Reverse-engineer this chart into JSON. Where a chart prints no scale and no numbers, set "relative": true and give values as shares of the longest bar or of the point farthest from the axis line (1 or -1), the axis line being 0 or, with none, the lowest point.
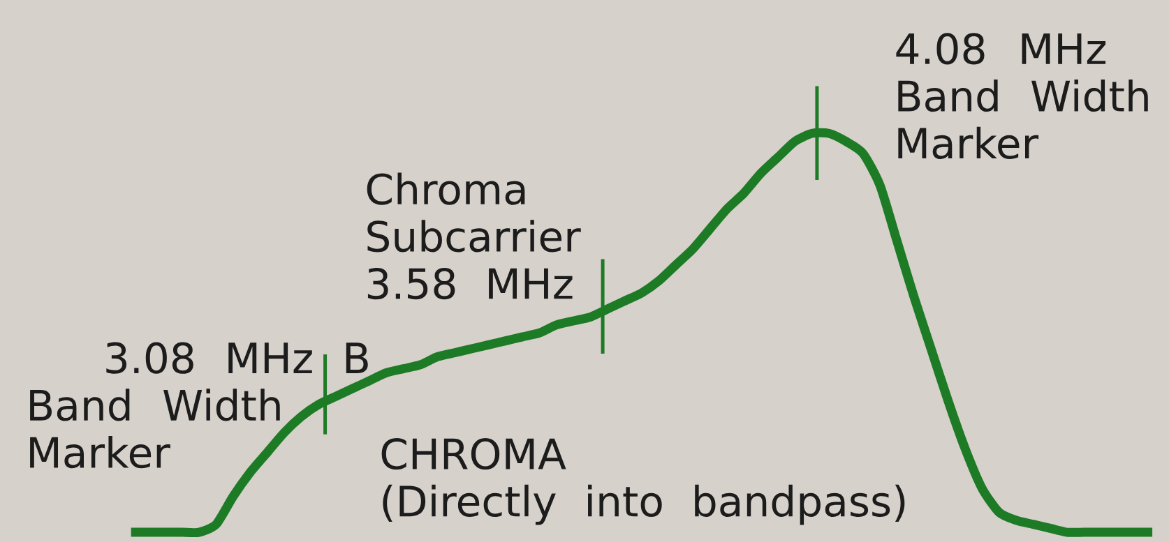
{
  "chart_data": {
    "type": "line",
    "relative": true,
    "categories": [
      null,
      null,
      null,
      null,
      null,
      null,
      null,
      null,
      null,
      null,
      null,
      null,
      null,
      null,
      null,
      null,
      null,
      null,
      null,
      null,
      null,
      null,
      null,
      null,
      null,
      null,
      null,
      null,
      null,
      null,
      null,
      null,
      null,
      null,
      null,
      null,
      null,
      null,
      null,
      null,
      null,
      null,
      null,
      null,
      null,
      null,
      null,
      null,
      null,
      null,
      null,
      null,
      null,
      null,
      null,
      null,
      null,
      null,
      null,
      null,
      null
    ],
    "series": [
      {
        "color": "#1e7b25",
        "values": [
          0,
          0,
          0,
          0,
          0,
          0.02,
          0.09,
          0.15,
          0.2,
          0.25,
          0.29,
          0.32,
          0.34,
          0.36,
          0.38,
          0.4,
          0.41,
          0.42,
          0.44,
          0.45,
          0.46,
          0.47,
          0.48,
          0.49,
          0.5,
          0.52,
          0.53,
          0.54,
          0.56,
          0.58,
          0.6,
          0.63,
          0.67,
          0.71,
          0.76,
          0.81,
          0.85,
          0.9,
          0.94,
          0.98,
          1.0,
          1.0,
          0.98,
          0.95,
          0.87,
          0.73,
          0.59,
          0.46,
          0.33,
          0.21,
          0.11,
          0.05,
          0.03,
          0.02,
          0.01,
          0,
          0,
          0,
          0,
          0,
          0
        ]
      }
    ],
    "annotations": [
      "3.08 MHz B Band Width Marker",
      "Chroma Subcarrier 3.58 MHz",
      "4.08 MHz Band Width Marker",
      "CHROMA (Directly into bandpass)"
    ]
  }
}
